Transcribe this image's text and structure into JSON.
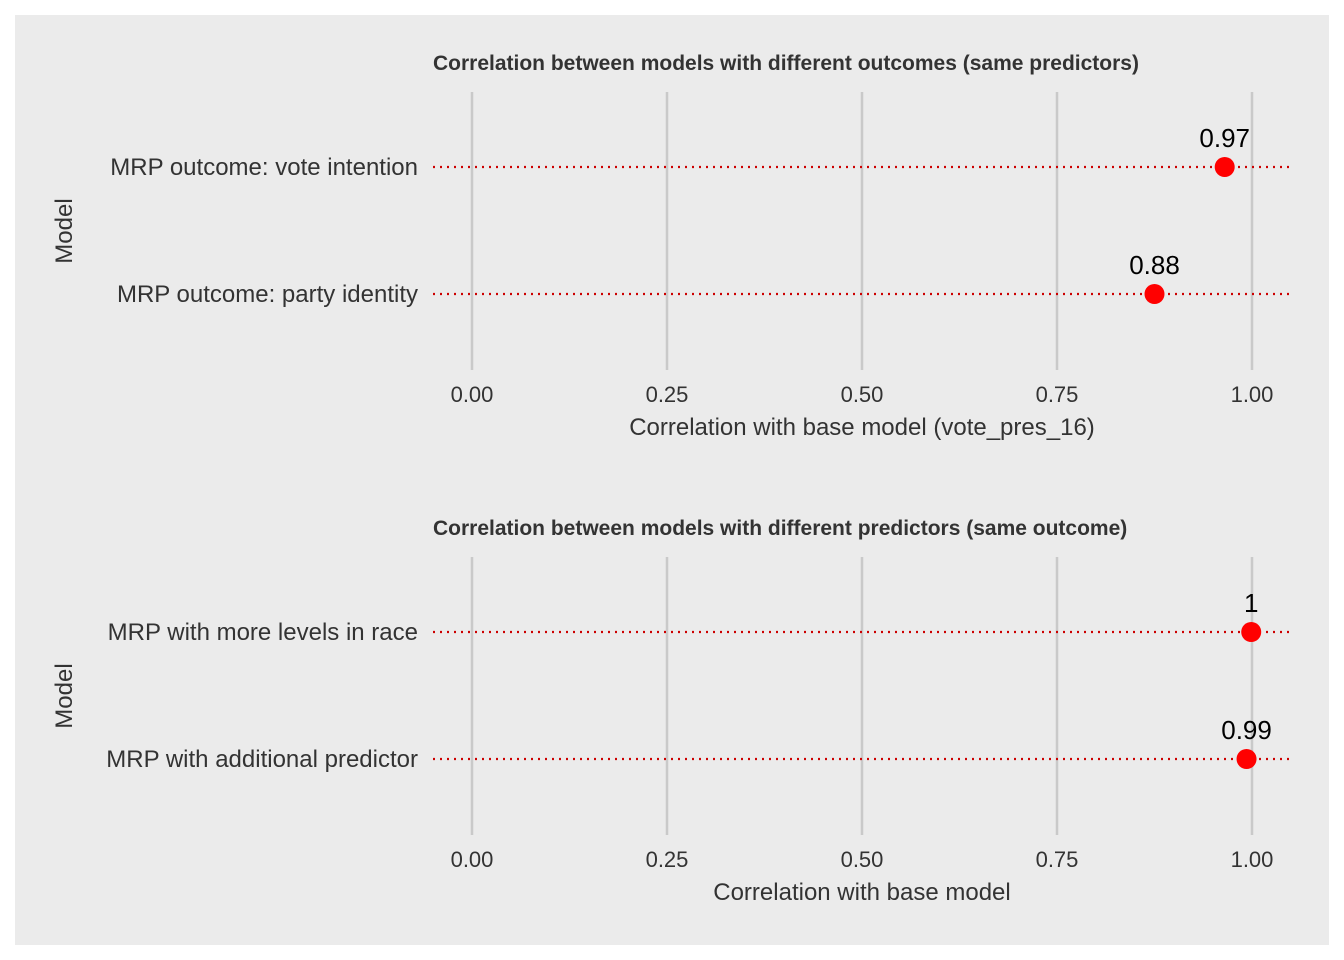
{
  "chart_data": [
    {
      "type": "scatter",
      "title": "Correlation between models with different outcomes (same predictors)",
      "xlabel": "Correlation with base model (vote_pres_16)",
      "ylabel": "Model",
      "xlim": [
        0,
        1
      ],
      "x_ticks": [
        "0.00",
        "0.25",
        "0.50",
        "0.75",
        "1.00"
      ],
      "categories": [
        "MRP outcome: vote intention",
        "MRP outcome: party identity"
      ],
      "values": [
        0.965,
        0.875
      ],
      "labels": [
        "0.97",
        "0.88"
      ],
      "grid": "vertical",
      "point_color": "#ff0000",
      "line_color": "#cc0000"
    },
    {
      "type": "scatter",
      "title": "Correlation between models with different predictors (same outcome)",
      "xlabel": "Correlation with base model",
      "ylabel": "Model",
      "xlim": [
        0,
        1
      ],
      "x_ticks": [
        "0.00",
        "0.25",
        "0.50",
        "0.75",
        "1.00"
      ],
      "categories": [
        "MRP with more levels in race",
        "MRP with additional predictor"
      ],
      "values": [
        0.999,
        0.993
      ],
      "labels": [
        "1",
        "0.99"
      ],
      "grid": "vertical",
      "point_color": "#ff0000",
      "line_color": "#cc0000"
    }
  ]
}
